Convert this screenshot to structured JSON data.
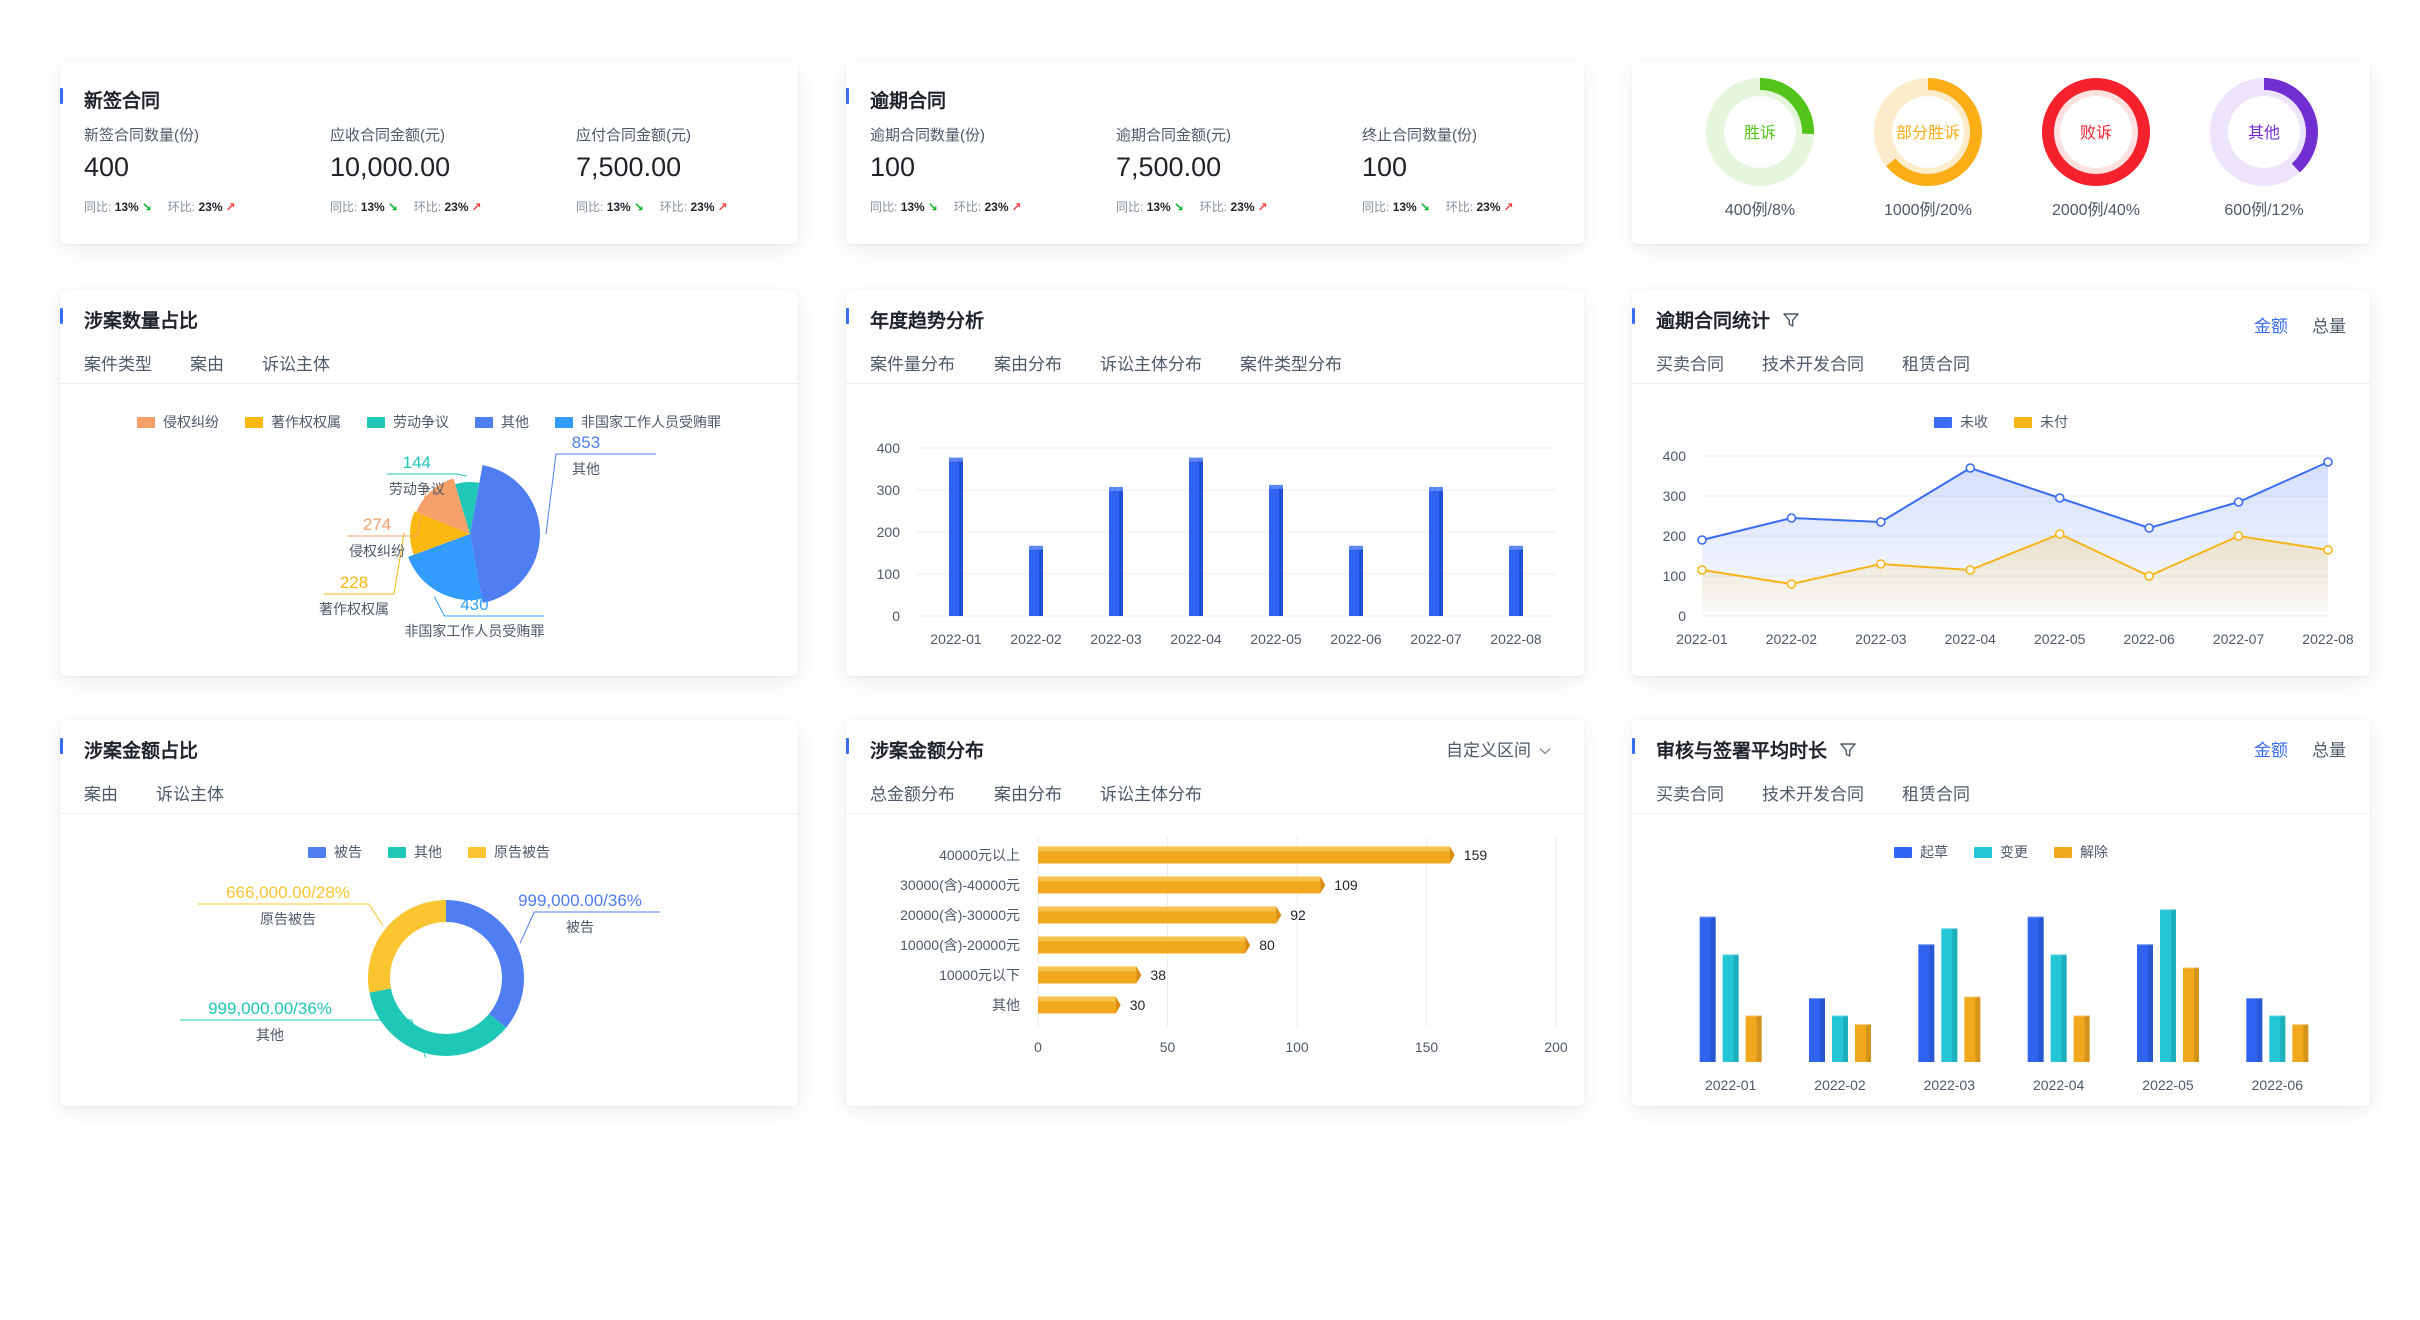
{
  "new_contract": {
    "title": "新签合同",
    "stats": [
      {
        "label": "新签合同数量(份)",
        "value": "400",
        "yoy_label": "同比:",
        "yoy": "13%",
        "mom_label": "环比:",
        "mom": "23%"
      },
      {
        "label": "应收合同金额(元)",
        "value": "10,000.00",
        "yoy_label": "同比:",
        "yoy": "13%",
        "mom_label": "环比:",
        "mom": "23%"
      },
      {
        "label": "应付合同金额(元)",
        "value": "7,500.00",
        "yoy_label": "同比:",
        "yoy": "13%",
        "mom_label": "环比:",
        "mom": "23%"
      }
    ]
  },
  "overdue_contract": {
    "title": "逾期合同",
    "stats": [
      {
        "label": "逾期合同数量(份)",
        "value": "100",
        "yoy_label": "同比:",
        "yoy": "13%",
        "mom_label": "环比:",
        "mom": "23%"
      },
      {
        "label": "逾期合同金额(元)",
        "value": "7,500.00",
        "yoy_label": "同比:",
        "yoy": "13%",
        "mom_label": "环比:",
        "mom": "23%"
      },
      {
        "label": "终止合同数量(份)",
        "value": "100",
        "yoy_label": "同比:",
        "yoy": "13%",
        "mom_label": "环比:",
        "mom": "23%"
      }
    ]
  },
  "verdicts": [
    {
      "label": "胜诉",
      "caption": "400例/8%",
      "percent": 8,
      "color": "#52c41a",
      "track": "#e6f6dc",
      "text_color": "#52c41a"
    },
    {
      "label": "部分胜诉",
      "caption": "1000例/20%",
      "percent": 20,
      "color": "#faad14",
      "track": "#fdeccc",
      "text_color": "#faad14"
    },
    {
      "label": "败诉",
      "caption": "2000例/40%",
      "percent": 40,
      "color": "#f5222d",
      "track": "#fde0e0",
      "text_color": "#f5222d"
    },
    {
      "label": "其他",
      "caption": "600例/12%",
      "percent": 12,
      "color": "#722ed1",
      "track": "#ece4fa",
      "text_color": "#722ed1"
    }
  ],
  "case_count": {
    "title": "涉案数量占比",
    "tabs": [
      "案件类型",
      "案由",
      "诉讼主体"
    ],
    "active_tab": 0,
    "chart_data": {
      "type": "pie",
      "series": [
        {
          "name": "侵权纠纷",
          "value": 274,
          "color": "#f7a06a"
        },
        {
          "name": "著作权权属",
          "value": 228,
          "color": "#fbb80f"
        },
        {
          "name": "劳动争议",
          "value": 144,
          "color": "#1ec7b6"
        },
        {
          "name": "其他",
          "value": 853,
          "color": "#4f7df2"
        },
        {
          "name": "非国家工作人员受贿罪",
          "value": 430,
          "color": "#339cff"
        }
      ]
    }
  },
  "annual_trend": {
    "title": "年度趋势分析",
    "tabs": [
      "案件量分布",
      "案由分布",
      "诉讼主体分布",
      "案件类型分布"
    ],
    "active_tab": 0,
    "chart_data": {
      "type": "bar",
      "categories": [
        "2022-01",
        "2022-02",
        "2022-03",
        "2022-04",
        "2022-05",
        "2022-06",
        "2022-07",
        "2022-08"
      ],
      "values": [
        370,
        160,
        300,
        370,
        305,
        160,
        300,
        160
      ],
      "ylim": [
        0,
        400
      ],
      "yticks": [
        0,
        100,
        200,
        300,
        400
      ],
      "color": "#2f63f0"
    }
  },
  "overdue_stats": {
    "title": "逾期合同统计",
    "options": [
      "金额",
      "总量"
    ],
    "active_option": 0,
    "tabs": [
      "买卖合同",
      "技术开发合同",
      "租赁合同"
    ],
    "active_tab": 0,
    "chart_data": {
      "type": "area",
      "categories": [
        "2022-01",
        "2022-02",
        "2022-03",
        "2022-04",
        "2022-05",
        "2022-06",
        "2022-07",
        "2022-08"
      ],
      "ylim": [
        0,
        400
      ],
      "yticks": [
        0,
        100,
        200,
        300,
        400
      ],
      "series": [
        {
          "name": "未收",
          "values": [
            190,
            245,
            235,
            370,
            295,
            220,
            285,
            385
          ],
          "color": "#3a6cf4"
        },
        {
          "name": "未付",
          "values": [
            115,
            80,
            130,
            115,
            205,
            100,
            200,
            165
          ],
          "color": "#f5b519"
        }
      ]
    }
  },
  "amount_ratio": {
    "title": "涉案金额占比",
    "tabs": [
      "案由",
      "诉讼主体"
    ],
    "active_tab": 0,
    "chart_data": {
      "type": "pie",
      "series": [
        {
          "name": "被告",
          "value": 36,
          "label": "999,000.00/36%",
          "color": "#4f7df2"
        },
        {
          "name": "其他",
          "value": 36,
          "label": "999,000.00/36%",
          "color": "#1ec7b6"
        },
        {
          "name": "原告被告",
          "value": 28,
          "label": "666,000.00/28%",
          "color": "#fbc531"
        }
      ]
    }
  },
  "amount_dist": {
    "title": "涉案金额分布",
    "dropdown": "自定义区间",
    "tabs": [
      "总金额分布",
      "案由分布",
      "诉讼主体分布"
    ],
    "active_tab": 0,
    "chart_data": {
      "type": "bar",
      "orientation": "horizontal",
      "categories": [
        "40000元以上",
        "30000(含)-40000元",
        "20000(含)-30000元",
        "10000(含)-20000元",
        "10000元以下",
        "其他"
      ],
      "values": [
        159,
        109,
        92,
        80,
        38,
        30
      ],
      "xlim": [
        0,
        200
      ],
      "xticks": [
        0,
        50,
        100,
        150,
        200
      ],
      "color": "#f2a81d"
    }
  },
  "review_duration": {
    "title": "审核与签署平均时长",
    "options": [
      "金额",
      "总量"
    ],
    "active_option": 0,
    "tabs": [
      "买卖合同",
      "技术开发合同",
      "租赁合同"
    ],
    "active_tab": 0,
    "chart_data": {
      "type": "bar",
      "categories": [
        "2022-01",
        "2022-02",
        "2022-03",
        "2022-04",
        "2022-05",
        "2022-06"
      ],
      "series": [
        {
          "name": "起草",
          "values": [
            100,
            44,
            81,
            100,
            81,
            44
          ],
          "color": "#2f63f0"
        },
        {
          "name": "变更",
          "values": [
            74,
            32,
            92,
            74,
            105,
            32
          ],
          "color": "#22c6d6"
        },
        {
          "name": "解除",
          "values": [
            32,
            26,
            45,
            32,
            65,
            26
          ],
          "color": "#f2a81d"
        }
      ],
      "ymax": 110
    }
  }
}
